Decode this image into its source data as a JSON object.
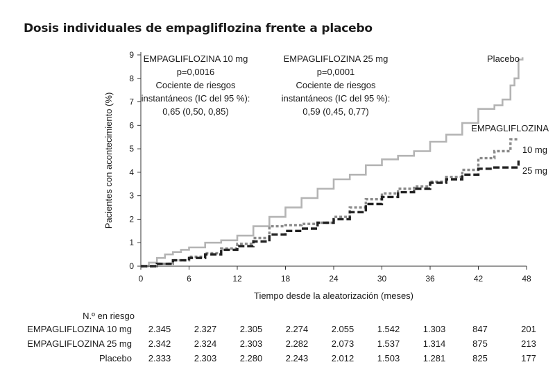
{
  "title": "Dosis individuales de empagliflozina frente a placebo",
  "chart_data": {
    "type": "line",
    "xlabel": "Tiempo desde la aleatorización (meses)",
    "ylabel": "Pacientes con acontecimiento (%)",
    "xlim": [
      0,
      48
    ],
    "ylim": [
      0,
      9
    ],
    "xticks": [
      0,
      6,
      12,
      18,
      24,
      30,
      36,
      42,
      48
    ],
    "yticks": [
      0,
      1,
      2,
      3,
      4,
      5,
      6,
      7,
      8,
      9
    ],
    "series": [
      {
        "name": "Placebo",
        "color": "#b4b4b4",
        "style": "solid",
        "x": [
          0,
          1,
          2,
          3,
          4,
          5,
          6,
          8,
          10,
          12,
          14,
          16,
          18,
          20,
          22,
          24,
          26,
          28,
          30,
          32,
          34,
          36,
          38,
          40,
          42,
          44,
          45,
          46,
          46.5,
          47,
          47.5
        ],
        "y": [
          0,
          0.15,
          0.35,
          0.5,
          0.6,
          0.7,
          0.8,
          1.0,
          1.1,
          1.3,
          1.7,
          2.1,
          2.5,
          2.9,
          3.3,
          3.7,
          3.9,
          4.3,
          4.55,
          4.7,
          4.9,
          5.3,
          5.6,
          6.1,
          6.7,
          6.85,
          7.1,
          7.7,
          8.0,
          8.8,
          8.9
        ]
      },
      {
        "name": "10 mg",
        "color": "#8a8a8a",
        "style": "dotted",
        "x": [
          0,
          2,
          4,
          6,
          8,
          10,
          12,
          14,
          16,
          18,
          20,
          22,
          24,
          26,
          28,
          30,
          32,
          34,
          36,
          38,
          40,
          42,
          44,
          46,
          47
        ],
        "y": [
          0,
          0.1,
          0.25,
          0.4,
          0.55,
          0.75,
          0.95,
          1.2,
          1.7,
          1.75,
          1.8,
          1.85,
          2.1,
          2.5,
          2.85,
          3.1,
          3.3,
          3.4,
          3.6,
          3.8,
          4.1,
          4.6,
          4.9,
          5.4,
          5.4
        ]
      },
      {
        "name": "25 mg",
        "color": "#222222",
        "style": "dashed",
        "x": [
          0,
          2,
          4,
          6,
          8,
          10,
          12,
          14,
          16,
          18,
          20,
          22,
          24,
          26,
          28,
          30,
          32,
          34,
          36,
          38,
          40,
          42,
          44,
          46,
          47
        ],
        "y": [
          0,
          0.1,
          0.25,
          0.35,
          0.5,
          0.7,
          0.85,
          1.05,
          1.35,
          1.5,
          1.6,
          1.85,
          2.0,
          2.3,
          2.65,
          2.95,
          3.15,
          3.3,
          3.55,
          3.7,
          3.9,
          4.15,
          4.2,
          4.2,
          4.5
        ]
      }
    ],
    "line_labels": [
      "Placebo",
      "EMPAGLIFLOZINA",
      "10 mg",
      "25 mg"
    ],
    "annotations": [
      {
        "lines": [
          "EMPAGLIFLOZINA 10 mg",
          "p=0,0016",
          "Cociente de riesgos",
          "instantáneos (IC del 95 %):",
          "0,65 (0,50, 0,85)"
        ]
      },
      {
        "lines": [
          "EMPAGLIFLOZINA 25 mg",
          "p=0,0001",
          "Cociente de riesgos",
          "instantáneos (IC del 95 %):",
          "0,59 (0,45, 0,77)"
        ]
      }
    ]
  },
  "risk_table": {
    "header": "N.º en riesgo",
    "rows": [
      {
        "label": "EMPAGLIFLOZINA 10 mg",
        "values": [
          "2.345",
          "2.327",
          "2.305",
          "2.274",
          "2.055",
          "1.542",
          "1.303",
          "847",
          "201"
        ]
      },
      {
        "label": "EMPAGLIFLOZINA 25 mg",
        "values": [
          "2.342",
          "2.324",
          "2.303",
          "2.282",
          "2.073",
          "1.537",
          "1.314",
          "875",
          "213"
        ]
      },
      {
        "label": "Placebo",
        "values": [
          "2.333",
          "2.303",
          "2.280",
          "2.243",
          "2.012",
          "1.503",
          "1.281",
          "825",
          "177"
        ]
      }
    ]
  }
}
